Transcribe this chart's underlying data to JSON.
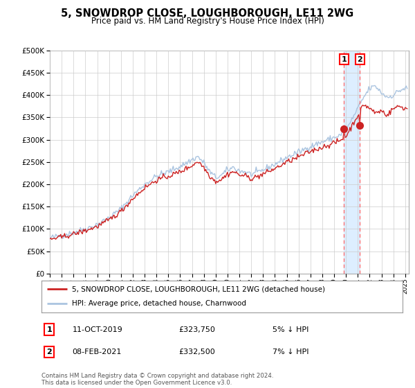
{
  "title": "5, SNOWDROP CLOSE, LOUGHBOROUGH, LE11 2WG",
  "subtitle": "Price paid vs. HM Land Registry's House Price Index (HPI)",
  "legend_line1": "5, SNOWDROP CLOSE, LOUGHBOROUGH, LE11 2WG (detached house)",
  "legend_line2": "HPI: Average price, detached house, Charnwood",
  "transaction1_date": "11-OCT-2019",
  "transaction1_price": "£323,750",
  "transaction1_hpi": "5% ↓ HPI",
  "transaction2_date": "08-FEB-2021",
  "transaction2_price": "£332,500",
  "transaction2_hpi": "7% ↓ HPI",
  "footer": "Contains HM Land Registry data © Crown copyright and database right 2024.\nThis data is licensed under the Open Government Licence v3.0.",
  "hpi_color": "#aac4e0",
  "price_color": "#cc2222",
  "vline_color": "#ff6666",
  "shade_color": "#ddeeff",
  "background_color": "#ffffff",
  "grid_color": "#cccccc",
  "ylim_min": 0,
  "ylim_max": 500000
}
